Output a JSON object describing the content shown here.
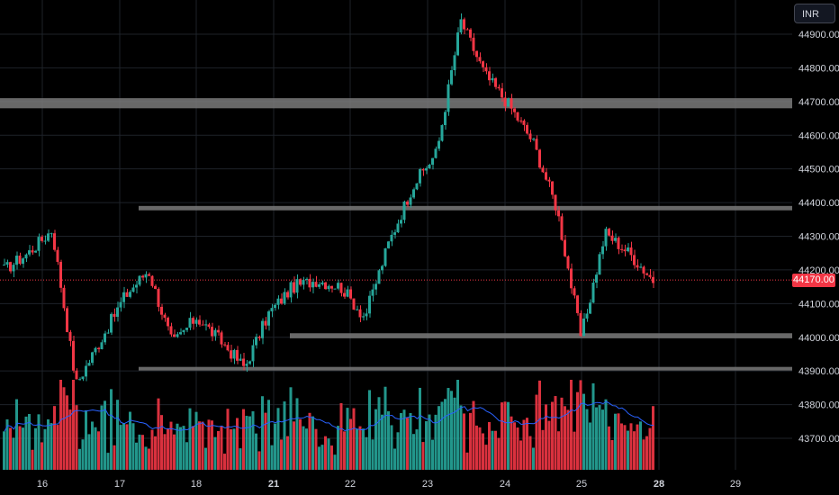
{
  "currency_button": {
    "label": "INR"
  },
  "last_price_label": "44170.00",
  "colors": {
    "up": "#26a69a",
    "down": "#f23645",
    "volume_ma": "#2962ff",
    "zone": "#7a7a7a",
    "grid": "#1e2229",
    "background": "#000000"
  },
  "chart_data": {
    "type": "candlestick",
    "grid": true,
    "y_axis": {
      "side": "right",
      "range": [
        43620,
        44995
      ],
      "ticks": [
        "44900.00",
        "44800.00",
        "44700.00",
        "44600.00",
        "44500.00",
        "44400.00",
        "44300.00",
        "44200.00",
        "44100.00",
        "44000.00",
        "43900.00",
        "43800.00",
        "43700.00"
      ]
    },
    "x_axis": {
      "labels": [
        "16",
        "17",
        "18",
        "21",
        "22",
        "23",
        "24",
        "25",
        "28",
        "29"
      ],
      "bold_labels": [
        "21",
        "28"
      ]
    },
    "last_price": 44170,
    "horizontal_zones": [
      {
        "from_label": "left-edge",
        "price_low": 44680,
        "price_high": 44710
      },
      {
        "from_label": "17",
        "price_low": 44377,
        "price_high": 44390
      },
      {
        "from_label": "21",
        "price_low": 43997,
        "price_high": 44012
      },
      {
        "from_label": "17",
        "price_low": 43903,
        "price_high": 43912
      }
    ],
    "session_path": [
      {
        "label": "16",
        "close": 44200
      },
      {
        "label": "16",
        "close": 44250
      },
      {
        "label": "16",
        "close": 44320
      },
      {
        "label": "16",
        "close": 43860
      },
      {
        "label": "16",
        "close": 43990
      },
      {
        "label": "17",
        "close": 44120
      },
      {
        "label": "17",
        "close": 44200
      },
      {
        "label": "17",
        "close": 43980
      },
      {
        "label": "18",
        "close": 44060
      },
      {
        "label": "18",
        "close": 43990
      },
      {
        "label": "18",
        "close": 43910
      },
      {
        "label": "21",
        "close": 44070
      },
      {
        "label": "21",
        "close": 44150
      },
      {
        "label": "22",
        "close": 44170
      },
      {
        "label": "22",
        "close": 44150
      },
      {
        "label": "23",
        "close": 44060
      },
      {
        "label": "23",
        "close": 44280
      },
      {
        "label": "23",
        "close": 44450
      },
      {
        "label": "23",
        "close": 44550
      },
      {
        "label": "24",
        "close": 44940
      },
      {
        "label": "24",
        "close": 44780
      },
      {
        "label": "24",
        "close": 44690
      },
      {
        "label": "25",
        "close": 44580
      },
      {
        "label": "25",
        "close": 44380
      },
      {
        "label": "25",
        "close": 44000
      },
      {
        "label": "25",
        "close": 44310
      },
      {
        "label": "28",
        "close": 44250
      },
      {
        "label": "28",
        "close": 44170
      }
    ]
  }
}
